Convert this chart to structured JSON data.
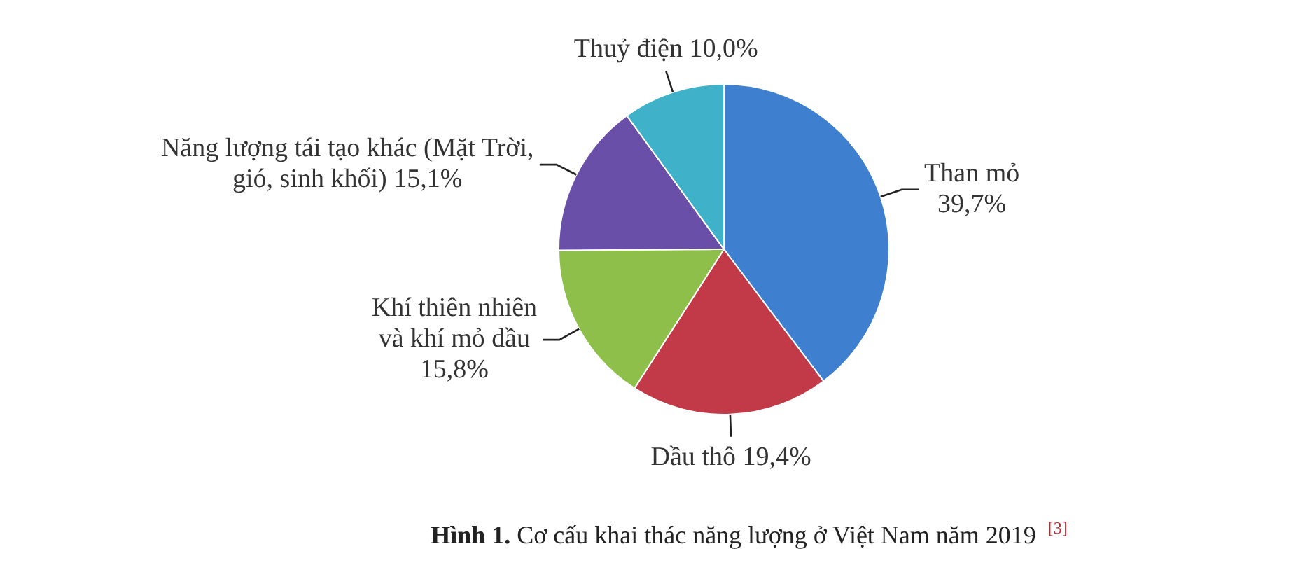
{
  "chart_data": {
    "type": "pie",
    "title": "Hình 1. Cơ cấu khai thác năng lượng ở Việt Nam năm 2019 $^{[3]}$",
    "categories": [
      "Than mỏ",
      "Dầu thô",
      "Khí thiên nhiên và khí mỏ dầu",
      "Năng lượng tái tạo khác (Mặt Trời, gió, sinh khối)",
      "Thuỷ điện"
    ],
    "values": [
      39.7,
      19.4,
      15.8,
      15.1,
      10.0
    ],
    "value_labels": [
      "39,7%",
      "19,4%",
      "15,8%",
      "15,1%",
      "10,0%"
    ],
    "colors": [
      "#3f7fcf",
      "#c23a48",
      "#8dbf4a",
      "#6a4fa8",
      "#3fb2c9"
    ]
  }
}
